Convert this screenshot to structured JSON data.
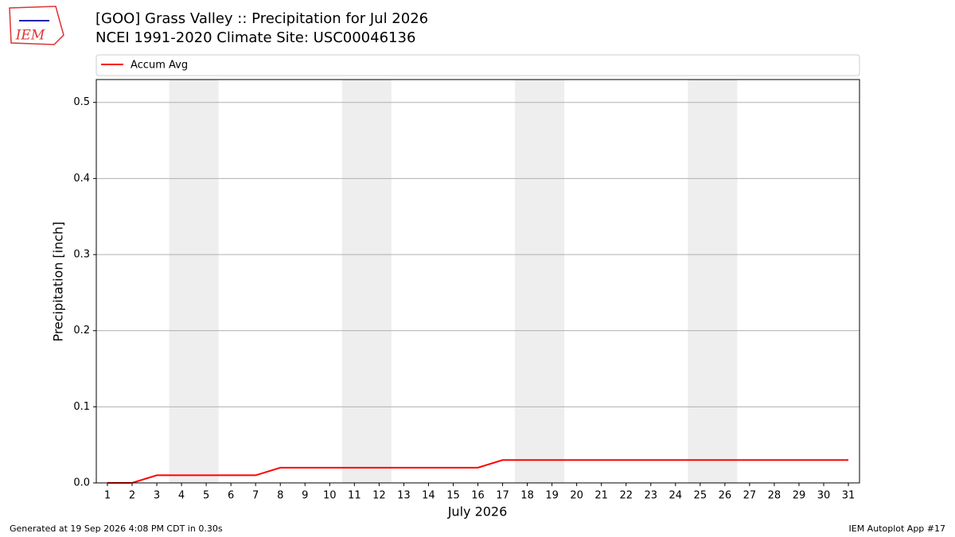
{
  "logo": "IEM",
  "footer_left": "Generated at 19 Sep 2026 4:08 PM CDT in 0.30s",
  "footer_right": "IEM Autoplot App #17",
  "chart_data": {
    "type": "line",
    "title": "[GOO] Grass Valley :: Precipitation for Jul 2026",
    "subtitle": "NCEI 1991-2020 Climate Site: USC00046136",
    "x_label": "July 2026",
    "y_label": "Precipitation [inch]",
    "x": [
      1,
      2,
      3,
      4,
      5,
      6,
      7,
      8,
      9,
      10,
      11,
      12,
      13,
      14,
      15,
      16,
      17,
      18,
      19,
      20,
      21,
      22,
      23,
      24,
      25,
      26,
      27,
      28,
      29,
      30,
      31
    ],
    "series": [
      {
        "name": "Accum Avg",
        "color": "#ff0000",
        "values": [
          0,
          0,
          0.01,
          0.01,
          0.01,
          0.01,
          0.01,
          0.02,
          0.02,
          0.02,
          0.02,
          0.02,
          0.02,
          0.02,
          0.02,
          0.02,
          0.03,
          0.03,
          0.03,
          0.03,
          0.03,
          0.03,
          0.03,
          0.03,
          0.03,
          0.03,
          0.03,
          0.03,
          0.03,
          0.03,
          0.03
        ]
      }
    ],
    "shaded_spans": [
      [
        3.5,
        5.5
      ],
      [
        10.5,
        12.5
      ],
      [
        17.5,
        19.5
      ],
      [
        24.5,
        26.5
      ]
    ],
    "shade_color": "#eeeeee",
    "xlim": [
      0.55,
      31.45
    ],
    "xticks": [
      1,
      2,
      3,
      4,
      5,
      6,
      7,
      8,
      9,
      10,
      11,
      12,
      13,
      14,
      15,
      16,
      17,
      18,
      19,
      20,
      21,
      22,
      23,
      24,
      25,
      26,
      27,
      28,
      29,
      30,
      31
    ],
    "ylim": [
      0,
      0.53
    ],
    "yticks": [
      0.0,
      0.1,
      0.2,
      0.3,
      0.4,
      0.5
    ],
    "grid": true,
    "legend": "top"
  }
}
